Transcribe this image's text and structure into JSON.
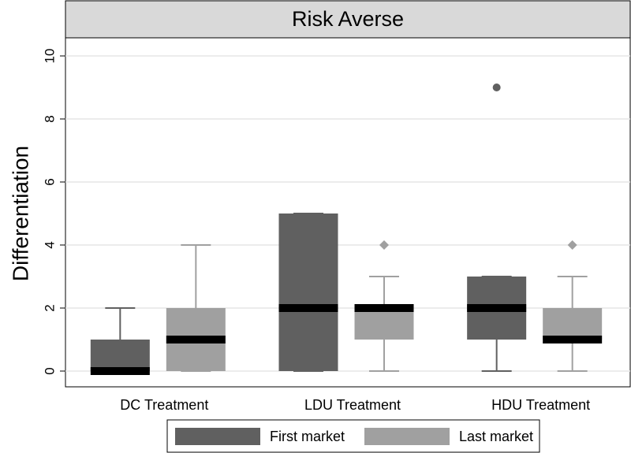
{
  "chart_data": {
    "type": "box",
    "title": "Risk Averse",
    "y_label": "Differentiation",
    "categories": [
      "DC Treatment",
      "LDU Treatment",
      "HDU Treatment"
    ],
    "series": [
      {
        "name": "First market",
        "color": "#606060",
        "outlier_marker": "circle",
        "min": [
          0,
          0,
          0
        ],
        "q1": [
          0,
          0,
          1
        ],
        "median": [
          0,
          2,
          2
        ],
        "q3": [
          1,
          5,
          3
        ],
        "max": [
          2,
          5,
          3
        ],
        "outliers": [
          [],
          [],
          [
            9
          ]
        ]
      },
      {
        "name": "Last market",
        "color": "#a0a0a0",
        "outlier_marker": "diamond",
        "min": [
          0,
          0,
          0
        ],
        "q1": [
          0,
          1,
          1
        ],
        "median": [
          1,
          2,
          1
        ],
        "q3": [
          2,
          2,
          2
        ],
        "max": [
          4,
          3,
          3
        ],
        "outliers": [
          [],
          [
            4
          ],
          [
            4
          ]
        ]
      }
    ],
    "ylim": [
      -0.5,
      10.5
    ],
    "yticks": [
      0,
      2,
      4,
      6,
      8,
      10
    ],
    "grid": true,
    "legend": "bottom"
  }
}
